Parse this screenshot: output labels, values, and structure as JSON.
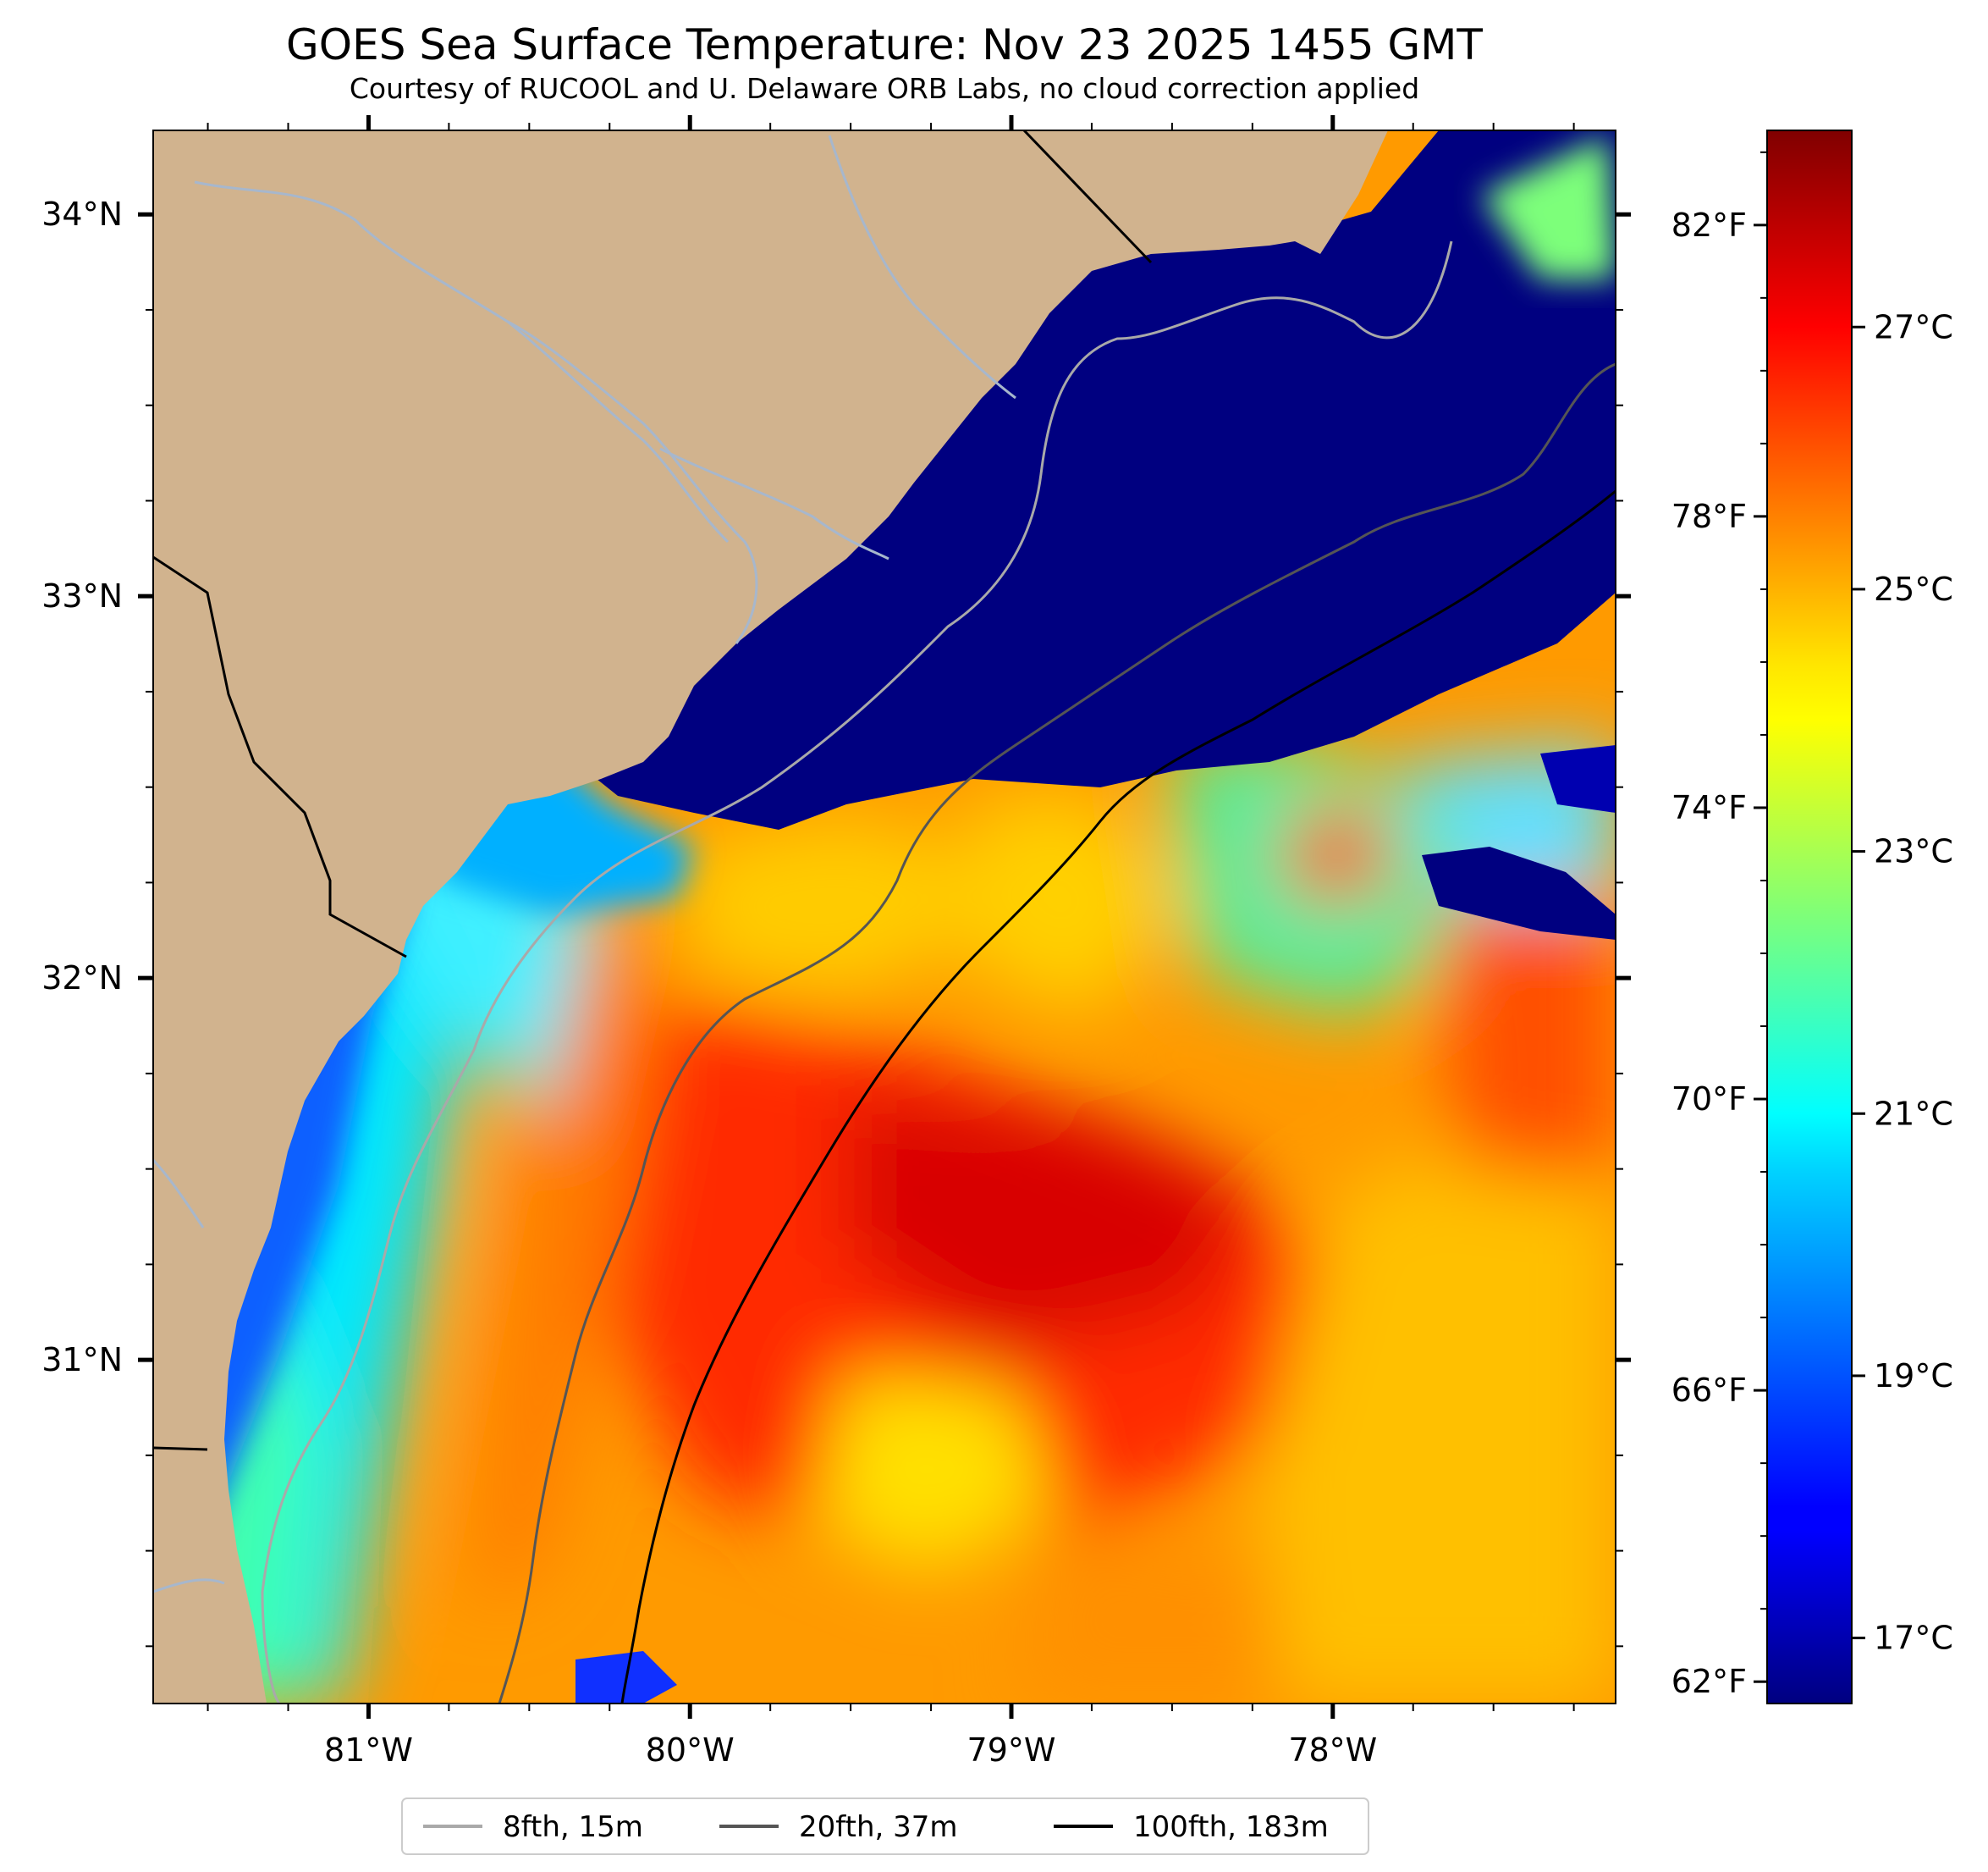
{
  "header": {
    "title": "GOES Sea Surface Temperature: Nov 23 2025 1455 GMT",
    "subtitle": "Courtesy of RUCOOL and U. Delaware ORB Labs, no cloud correction applied"
  },
  "map": {
    "lon_range": [
      -81.67,
      -77.12
    ],
    "lat_range": [
      30.1,
      34.22
    ],
    "lat_ticks": [
      {
        "value": 34,
        "label": "34°N"
      },
      {
        "value": 33,
        "label": "33°N"
      },
      {
        "value": 32,
        "label": "32°N"
      },
      {
        "value": 31,
        "label": "31°N"
      }
    ],
    "lon_ticks": [
      {
        "value": -81,
        "label": "81°W"
      },
      {
        "value": -80,
        "label": "80°W"
      },
      {
        "value": -79,
        "label": "79°W"
      },
      {
        "value": -78,
        "label": "78°W"
      }
    ],
    "colors": {
      "land": "#d1b38e",
      "ocean_cold": "#000080",
      "rivers": "#a7b7cc"
    }
  },
  "colorbar": {
    "colormap": "jet",
    "range_c": [
      16.5,
      28.5
    ],
    "celsius_ticks": [
      {
        "value": 17,
        "label": "17°C"
      },
      {
        "value": 19,
        "label": "19°C"
      },
      {
        "value": 21,
        "label": "21°C"
      },
      {
        "value": 23,
        "label": "23°C"
      },
      {
        "value": 25,
        "label": "25°C"
      },
      {
        "value": 27,
        "label": "27°C"
      }
    ],
    "fahrenheit_ticks": [
      {
        "value": 62,
        "label": "62°F"
      },
      {
        "value": 66,
        "label": "66°F"
      },
      {
        "value": 70,
        "label": "70°F"
      },
      {
        "value": 74,
        "label": "74°F"
      },
      {
        "value": 78,
        "label": "78°F"
      },
      {
        "value": 82,
        "label": "82°F"
      }
    ]
  },
  "legend": {
    "placement": "bottom",
    "items": [
      {
        "label": "8fth, 15m",
        "color": "#a9a9a9"
      },
      {
        "label": "20fth, 37m",
        "color": "#555555"
      },
      {
        "label": "100fth, 183m",
        "color": "#000000"
      }
    ]
  }
}
